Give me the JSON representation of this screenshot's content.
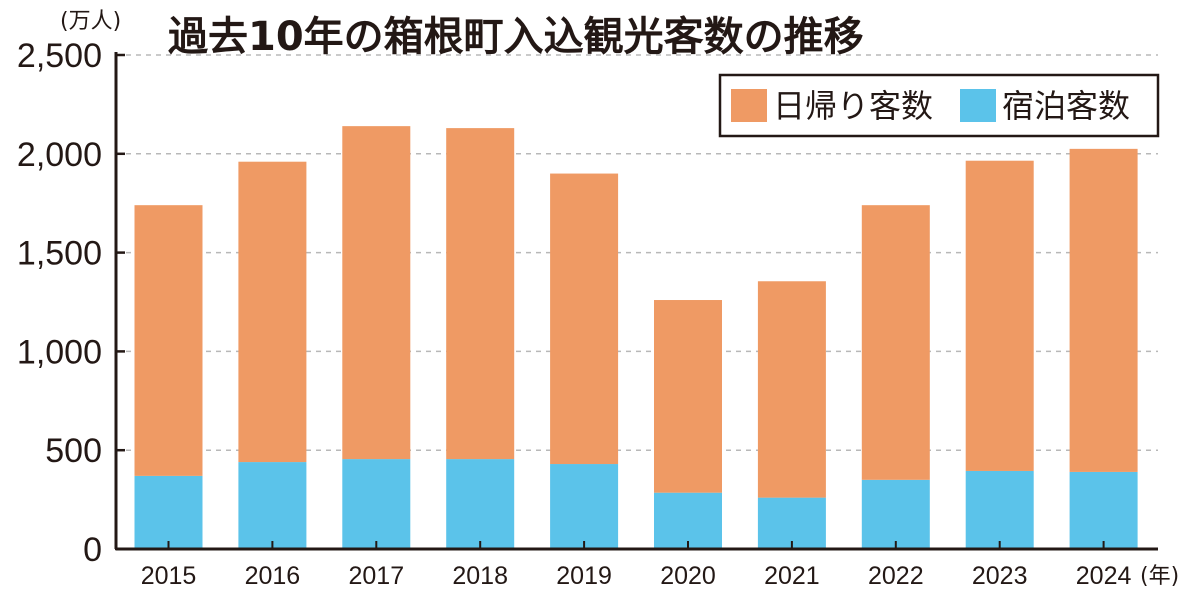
{
  "chart_data": {
    "type": "bar",
    "stacked": true,
    "title": "過去10年の箱根町入込観光客数の推移",
    "ylabel": "(万人)",
    "xlabel": "(年)",
    "ylim": [
      0,
      2500
    ],
    "yticks": [
      0,
      500,
      1000,
      1500,
      2000,
      2500
    ],
    "ytick_labels": [
      "0",
      "500",
      "1,000",
      "1,500",
      "2,000",
      "2,500"
    ],
    "grid": true,
    "legend_position": "top-right",
    "categories": [
      "2015",
      "2016",
      "2017",
      "2018",
      "2019",
      "2020",
      "2021",
      "2022",
      "2023",
      "2024"
    ],
    "series": [
      {
        "name": "宿泊客数",
        "color": "#5bc3ea",
        "values": [
          370,
          440,
          455,
          455,
          430,
          285,
          260,
          350,
          395,
          390
        ]
      },
      {
        "name": "日帰り客数",
        "color": "#ef9a64",
        "values": [
          1370,
          1520,
          1685,
          1675,
          1470,
          975,
          1095,
          1390,
          1570,
          1635
        ]
      }
    ],
    "legend_order": [
      "日帰り客数",
      "宿泊客数"
    ]
  }
}
